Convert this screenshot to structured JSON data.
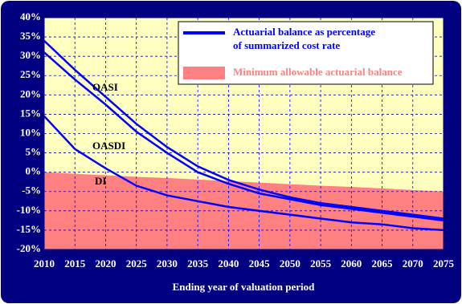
{
  "chart_data": {
    "type": "line",
    "xlabel": "Ending year of valuation period",
    "x": [
      2010,
      2015,
      2020,
      2025,
      2030,
      2035,
      2040,
      2045,
      2050,
      2055,
      2060,
      2065,
      2070,
      2075
    ],
    "series": [
      {
        "name": "OASI",
        "color": "#0000ff",
        "values": [
          34,
          26.5,
          19.5,
          12.5,
          6.5,
          1.5,
          -2,
          -4.5,
          -6.5,
          -8,
          -9,
          -10,
          -11,
          -12
        ]
      },
      {
        "name": "OASDI",
        "color": "#0000ff",
        "values": [
          31,
          24,
          17.5,
          10.5,
          5,
          0,
          -3,
          -5.5,
          -7,
          -8.5,
          -9.5,
          -10.5,
          -11.5,
          -12.5
        ]
      },
      {
        "name": "DI",
        "color": "#0000ff",
        "values": [
          14.5,
          6,
          1,
          -3.5,
          -6,
          -7.5,
          -9,
          -10,
          -11,
          -12,
          -13,
          -13.5,
          -14.5,
          -15
        ]
      }
    ],
    "area": {
      "name": "Minimum allowable actuarial balance",
      "color": "#ff8080",
      "values": [
        0,
        -0.4,
        -0.8,
        -1.2,
        -1.5,
        -1.9,
        -2.3,
        -2.7,
        -3.1,
        -3.5,
        -3.8,
        -4.2,
        -4.6,
        -5
      ]
    },
    "legend_line_label": [
      "Actuarial balance as percentage",
      "of summarized cost rate"
    ],
    "xlim": [
      2010,
      2075
    ],
    "xticks": [
      2010,
      2015,
      2020,
      2025,
      2030,
      2035,
      2040,
      2045,
      2050,
      2055,
      2060,
      2065,
      2070,
      2075
    ],
    "ylim": [
      -20,
      40
    ],
    "yticks": [
      {
        "value": -20,
        "label": "-20%"
      },
      {
        "value": -15,
        "label": "-15%"
      },
      {
        "value": -10,
        "label": "-10%"
      },
      {
        "value": -5,
        "label": "-5%"
      },
      {
        "value": 0,
        "label": "0%"
      },
      {
        "value": 5,
        "label": "5%"
      },
      {
        "value": 10,
        "label": "10%"
      },
      {
        "value": 15,
        "label": "15%"
      },
      {
        "value": 20,
        "label": "20%"
      },
      {
        "value": 25,
        "label": "25%"
      },
      {
        "value": 30,
        "label": "30%"
      },
      {
        "value": 35,
        "label": "35%"
      },
      {
        "value": 40,
        "label": "40%"
      }
    ],
    "grid": true
  }
}
